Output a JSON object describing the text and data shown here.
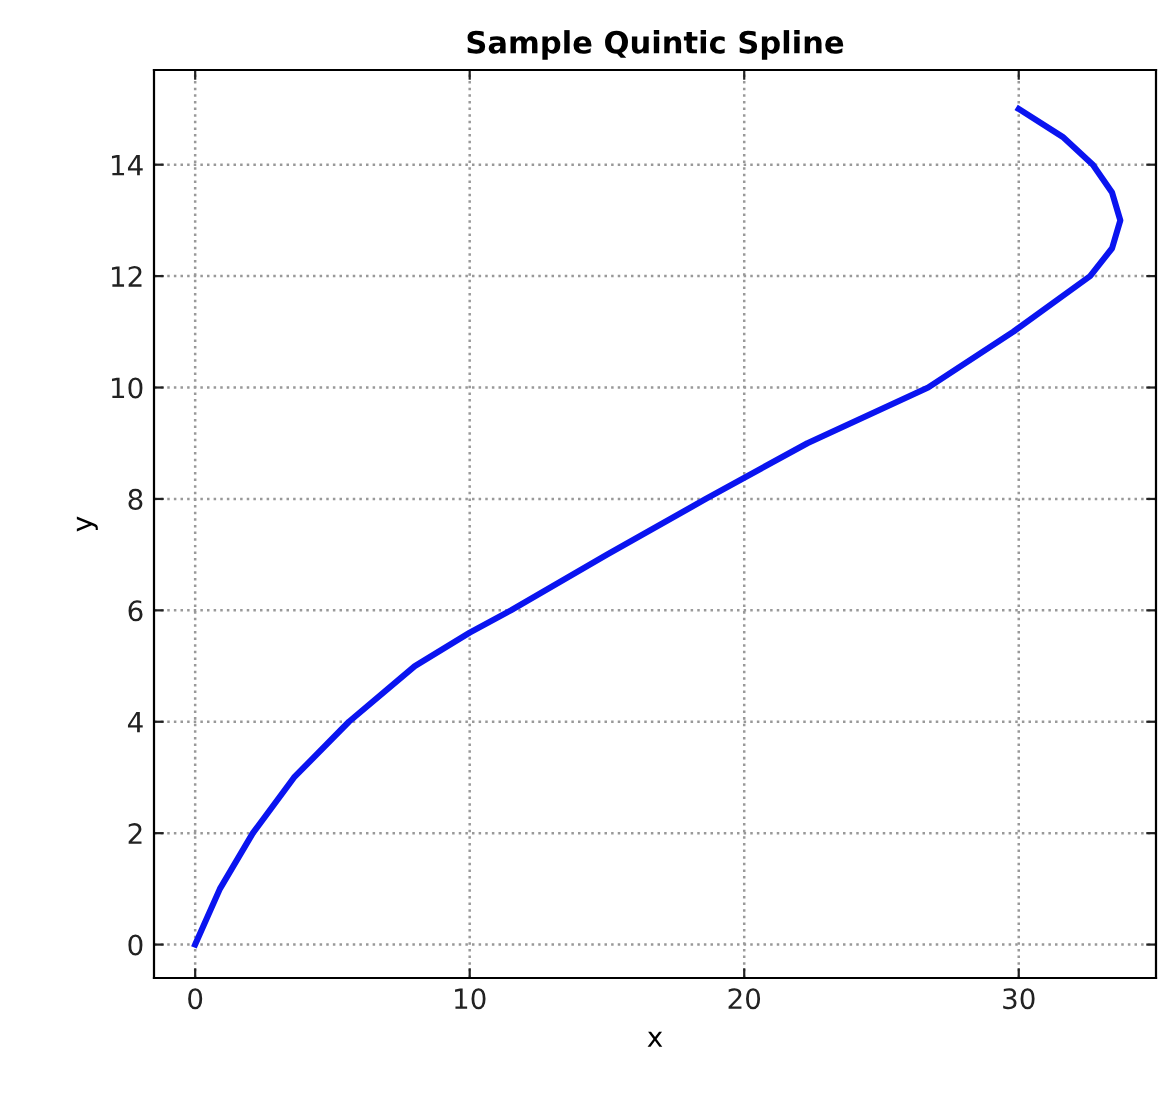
{
  "chart_data": {
    "type": "line",
    "title": "Sample Quintic Spline",
    "xlabel": "x",
    "ylabel": "y",
    "series": [
      {
        "color": "#0a14f0",
        "x": [
          0,
          0.9,
          2.1,
          3.6,
          5.6,
          8.0,
          10,
          11.5,
          15.0,
          18.6,
          22.3,
          26.7,
          29.8,
          32.6,
          33.4,
          33.7,
          33.4,
          32.7,
          31.6,
          30
        ],
        "values": [
          0,
          1,
          2,
          3,
          4,
          5,
          5.6,
          6,
          7,
          8,
          9,
          10,
          11,
          12,
          12.5,
          13,
          13.5,
          14,
          14.5,
          15
        ]
      }
    ],
    "xlim": [
      -1.5,
      35
    ],
    "xticks": [
      0,
      10,
      20,
      30
    ],
    "ylim": [
      -0.6,
      15.7
    ],
    "yticks": [
      0,
      2,
      4,
      6,
      8,
      10,
      12,
      14
    ],
    "grid": true,
    "line_style": "solid",
    "marker": "none"
  }
}
